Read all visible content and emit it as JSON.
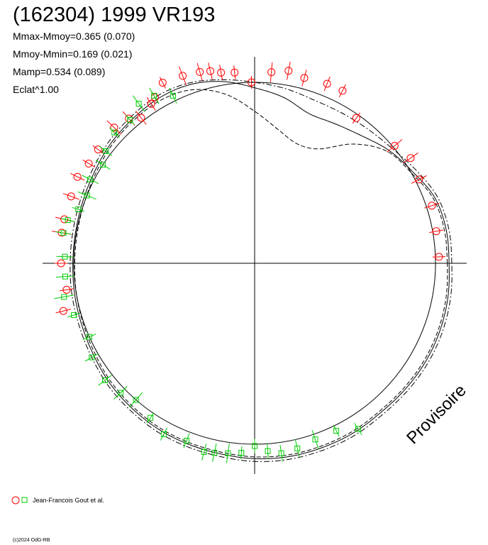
{
  "title": "(162304) 1999 VR193",
  "stats": {
    "mmax_mmoy": "Mmax-Mmoy=0.365 (0.070)",
    "mmoy_mmin": "Mmoy-Mmin=0.169 (0.021)",
    "mamp": "Mamp=0.534 (0.089)",
    "eclat": "Eclat^1.00"
  },
  "watermark": "Provisoire",
  "legend_text": "Jean-Francois Gout et al.",
  "copyright": "(c)2024 OdG-RB",
  "colors": {
    "red_series": "#ff0000",
    "green_series": "#00cc00",
    "ink": "#000000"
  },
  "chart_data": {
    "type": "scatter",
    "plot_kind": "polar lightcurve",
    "title": "(162304) 1999 VR193",
    "grid": false,
    "legend_placement": "bottom-left",
    "reference_circle_radius": 1,
    "curves": [
      {
        "style": "solid",
        "r": [
          1.075,
          1.075,
          1.06,
          1.01,
          0.97,
          0.92,
          0.89,
          0.88,
          0.93,
          0.97,
          1.02,
          1.05,
          1.055,
          1.045,
          1.035,
          1.02,
          1.01,
          1.005,
          1.005,
          1.01,
          1.015,
          1.025,
          1.04,
          1.05,
          1.06,
          1.065,
          1.07,
          1.08,
          1.085,
          1.085,
          1.085,
          1.08,
          1.085,
          1.09,
          1.09,
          1.085
        ]
      },
      {
        "style": "dashed",
        "r": [
          1.065,
          1.065,
          1.05,
          1.0,
          0.96,
          0.86,
          0.73,
          0.7,
          0.75,
          0.84,
          0.95,
          1.02,
          1.04,
          1.035,
          1.025,
          1.01,
          1.0,
          0.995,
          0.995,
          1.0,
          1.005,
          1.015,
          1.03,
          1.04,
          1.05,
          1.055,
          1.06,
          1.07,
          1.075,
          1.075,
          1.075,
          1.07,
          1.075,
          1.08,
          1.08,
          1.075
        ]
      },
      {
        "style": "dashdot",
        "r": [
          1.09,
          1.09,
          1.075,
          1.03,
          0.99,
          0.97,
          0.96,
          0.96,
          0.98,
          1.0,
          1.03,
          1.06,
          1.07,
          1.06,
          1.05,
          1.035,
          1.025,
          1.02,
          1.02,
          1.025,
          1.03,
          1.04,
          1.055,
          1.065,
          1.075,
          1.08,
          1.085,
          1.095,
          1.1,
          1.1,
          1.1,
          1.095,
          1.1,
          1.105,
          1.105,
          1.1
        ]
      }
    ],
    "series": [
      {
        "name": "Jean-Francois Gout et al.",
        "marker": "circle",
        "color": "#ff0000",
        "points": [
          [
            2,
            1.02
          ],
          [
            10,
            1.02
          ],
          [
            18,
            1.03
          ],
          [
            27,
            1.02
          ],
          [
            34,
            1.04
          ],
          [
            40,
            1.01
          ],
          [
            55,
            0.98
          ],
          [
            63,
            1.07
          ],
          [
            68,
            1.07
          ],
          [
            75,
            1.06
          ],
          [
            80,
            1.08
          ],
          [
            85,
            1.06
          ],
          [
            91,
            1.0
          ],
          [
            96,
            1.06
          ],
          [
            100,
            1.07
          ],
          [
            103,
            1.09
          ],
          [
            106,
            1.1
          ],
          [
            111,
            1.11
          ],
          [
            117,
            1.12
          ],
          [
            121,
            1.07
          ],
          [
            123,
            1.05
          ],
          [
            128,
            1.02
          ],
          [
            131,
            1.06
          ],
          [
            136,
            1.08
          ],
          [
            144,
            1.07
          ],
          [
            149,
            1.07
          ],
          [
            154,
            1.09
          ],
          [
            160,
            1.08
          ],
          [
            167,
            1.08
          ],
          [
            171,
            1.08
          ],
          [
            180,
            1.07
          ],
          [
            188,
            1.05
          ],
          [
            194,
            1.09
          ]
        ]
      },
      {
        "name": "Jean-Francois Gout et al.",
        "marker": "square",
        "color": "#00cc00",
        "points": [
          [
            116,
            1.03
          ],
          [
            121,
            1.08
          ],
          [
            126,
            1.09
          ],
          [
            131,
            1.05
          ],
          [
            137,
            1.06
          ],
          [
            143,
            1.03
          ],
          [
            147,
            1.0
          ],
          [
            153,
            1.02
          ],
          [
            158,
            1.0
          ],
          [
            163,
            1.02
          ],
          [
            167,
            1.06
          ],
          [
            171,
            1.07
          ],
          [
            178,
            1.05
          ],
          [
            184,
            1.05
          ],
          [
            190,
            1.07
          ],
          [
            196,
            1.04
          ],
          [
            204,
            1.0
          ],
          [
            210,
            1.04
          ],
          [
            218,
            1.05
          ],
          [
            224,
            1.03
          ],
          [
            229,
            1.0
          ],
          [
            236,
            1.03
          ],
          [
            242,
            1.07
          ],
          [
            249,
            1.05
          ],
          [
            255,
            1.08
          ],
          [
            258,
            1.07
          ],
          [
            262,
            1.06
          ],
          [
            266,
            1.05
          ],
          [
            270,
            1.01
          ],
          [
            274,
            1.04
          ],
          [
            278,
            1.06
          ],
          [
            283,
            1.05
          ],
          [
            289,
            1.03
          ],
          [
            296,
            1.03
          ],
          [
            302,
            1.08
          ]
        ]
      }
    ]
  }
}
